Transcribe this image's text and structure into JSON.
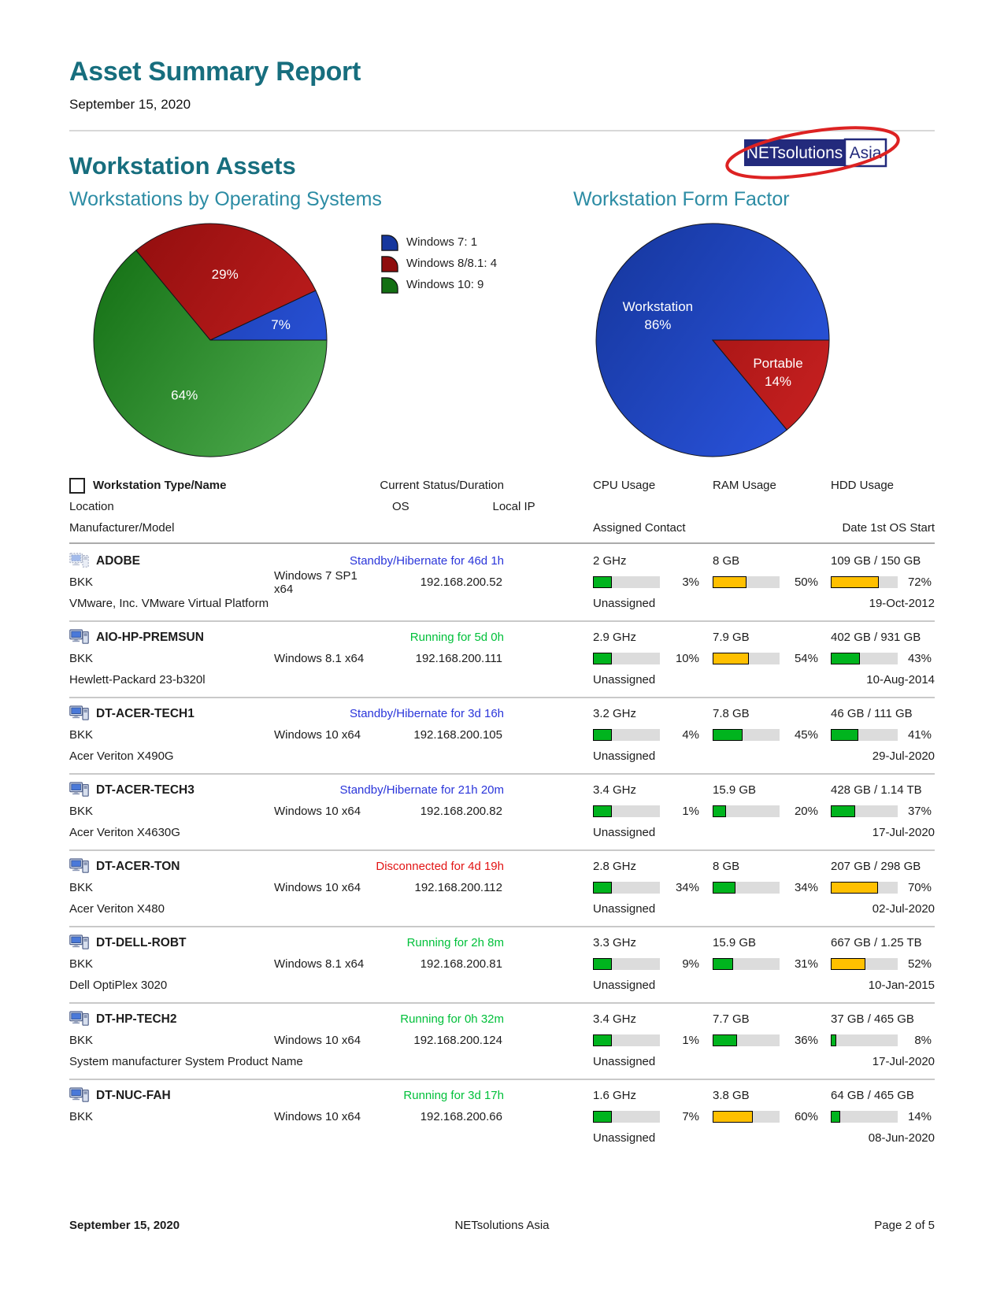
{
  "report": {
    "title": "Asset Summary Report",
    "date": "September 15, 2020",
    "section_title": "Workstation Assets"
  },
  "logo": {
    "primary": "NETsolutions",
    "secondary": "Asia",
    "navy": "#232A7C",
    "red": "#DD2222"
  },
  "chart_data": [
    {
      "type": "pie",
      "title": "Workstations by Operating Systems",
      "legend_position": "right",
      "slices": [
        {
          "label": "Windows 7",
          "count": 1,
          "pct": 7,
          "color": "blue",
          "legend_label": "Windows 7: 1",
          "display_lines": [
            "7%"
          ],
          "label_r": 0.62
        },
        {
          "label": "Windows 8/8.1",
          "count": 4,
          "pct": 29,
          "color": "red",
          "legend_label": "Windows 8/8.1: 4",
          "display_lines": [
            "29%"
          ],
          "label_r": 0.58
        },
        {
          "label": "Windows 10",
          "count": 9,
          "pct": 64,
          "color": "green",
          "legend_label": "Windows 10: 9",
          "display_lines": [
            "64%"
          ],
          "label_r": 0.52
        }
      ]
    },
    {
      "type": "pie",
      "title": "Workstation Form Factor",
      "legend_position": "none",
      "slices": [
        {
          "label": "Workstation",
          "pct": 86,
          "color": "blue",
          "display_lines": [
            "Workstation",
            "86%"
          ],
          "label_r": 0.52
        },
        {
          "label": "Portable",
          "pct": 14,
          "color": "red",
          "display_lines": [
            "Portable",
            "14%"
          ],
          "label_r": 0.62
        }
      ]
    }
  ],
  "ui": {
    "heading_color": "#176E7E",
    "chart_title_color": "#2C8CA4",
    "status_colors": {
      "standby": "#2A35DA",
      "running": "#00C03A",
      "disconnected": "#E21414"
    },
    "bar": {
      "low_color": "#00B41E",
      "high_color": "#FFC000",
      "threshold": 50,
      "track": "#DCDCDC",
      "cpu_fixed_fill": 28
    },
    "pie_colors": {
      "blue": [
        "#16379E",
        "#2B55E0"
      ],
      "red": [
        "#8F0D0D",
        "#C92121"
      ],
      "green": [
        "#136F13",
        "#4FAC4F"
      ]
    }
  },
  "table": {
    "headers": {
      "type_name": "Workstation Type/Name",
      "status": "Current Status/Duration",
      "cpu": "CPU Usage",
      "ram": "RAM Usage",
      "hdd": "HDD Usage",
      "location": "Location",
      "os": "OS",
      "ip": "Local IP",
      "manufacturer": "Manufacturer/Model",
      "contact": "Assigned Contact",
      "os_start": "Date 1st OS Start"
    },
    "rows": [
      {
        "icon": "virtual",
        "name": "ADOBE",
        "status": "Standby/Hibernate for 46d 1h",
        "status_type": "standby",
        "location": "BKK",
        "os": "Windows 7 SP1 x64",
        "ip": "192.168.200.52",
        "manufacturer": "VMware, Inc. VMware Virtual Platform",
        "cpu": {
          "spec": "2 GHz",
          "pct": 3
        },
        "ram": {
          "spec": "8 GB",
          "pct": 50
        },
        "hdd": {
          "spec": "109 GB / 150 GB",
          "pct": 72
        },
        "contact": "Unassigned",
        "os_start": "19-Oct-2012"
      },
      {
        "icon": "desktop",
        "name": "AIO-HP-PREMSUN",
        "status": "Running for 5d 0h",
        "status_type": "running",
        "location": "BKK",
        "os": "Windows 8.1 x64",
        "ip": "192.168.200.111",
        "manufacturer": "Hewlett-Packard 23-b320l",
        "cpu": {
          "spec": "2.9 GHz",
          "pct": 10
        },
        "ram": {
          "spec": "7.9 GB",
          "pct": 54
        },
        "hdd": {
          "spec": "402 GB / 931 GB",
          "pct": 43
        },
        "contact": "Unassigned",
        "os_start": "10-Aug-2014"
      },
      {
        "icon": "desktop",
        "name": "DT-ACER-TECH1",
        "status": "Standby/Hibernate for 3d 16h",
        "status_type": "standby",
        "location": "BKK",
        "os": "Windows 10 x64",
        "ip": "192.168.200.105",
        "manufacturer": "Acer Veriton X490G",
        "cpu": {
          "spec": "3.2 GHz",
          "pct": 4
        },
        "ram": {
          "spec": "7.8 GB",
          "pct": 45
        },
        "hdd": {
          "spec": "46 GB / 111 GB",
          "pct": 41
        },
        "contact": "Unassigned",
        "os_start": "29-Jul-2020"
      },
      {
        "icon": "desktop",
        "name": "DT-ACER-TECH3",
        "status": "Standby/Hibernate for 21h 20m",
        "status_type": "standby",
        "location": "BKK",
        "os": "Windows 10 x64",
        "ip": "192.168.200.82",
        "manufacturer": "Acer Veriton X4630G",
        "cpu": {
          "spec": "3.4 GHz",
          "pct": 1
        },
        "ram": {
          "spec": "15.9 GB",
          "pct": 20
        },
        "hdd": {
          "spec": "428 GB / 1.14 TB",
          "pct": 37
        },
        "contact": "Unassigned",
        "os_start": "17-Jul-2020"
      },
      {
        "icon": "desktop",
        "name": "DT-ACER-TON",
        "status": "Disconnected for 4d 19h",
        "status_type": "disconnected",
        "location": "BKK",
        "os": "Windows 10 x64",
        "ip": "192.168.200.112",
        "manufacturer": "Acer Veriton X480",
        "cpu": {
          "spec": "2.8 GHz",
          "pct": 34
        },
        "ram": {
          "spec": "8 GB",
          "pct": 34
        },
        "hdd": {
          "spec": "207 GB / 298 GB",
          "pct": 70
        },
        "contact": "Unassigned",
        "os_start": "02-Jul-2020"
      },
      {
        "icon": "desktop",
        "name": "DT-DELL-ROBT",
        "status": "Running for 2h 8m",
        "status_type": "running",
        "location": "BKK",
        "os": "Windows 8.1 x64",
        "ip": "192.168.200.81",
        "manufacturer": "Dell OptiPlex 3020",
        "cpu": {
          "spec": "3.3 GHz",
          "pct": 9
        },
        "ram": {
          "spec": "15.9 GB",
          "pct": 31
        },
        "hdd": {
          "spec": "667 GB / 1.25 TB",
          "pct": 52
        },
        "contact": "Unassigned",
        "os_start": "10-Jan-2015"
      },
      {
        "icon": "desktop",
        "name": "DT-HP-TECH2",
        "status": "Running for 0h 32m",
        "status_type": "running",
        "location": "BKK",
        "os": "Windows 10 x64",
        "ip": "192.168.200.124",
        "manufacturer": "System manufacturer System Product Name",
        "cpu": {
          "spec": "3.4 GHz",
          "pct": 1
        },
        "ram": {
          "spec": "7.7 GB",
          "pct": 36
        },
        "hdd": {
          "spec": "37 GB / 465 GB",
          "pct": 8
        },
        "contact": "Unassigned",
        "os_start": "17-Jul-2020"
      },
      {
        "icon": "desktop",
        "name": "DT-NUC-FAH",
        "status": "Running for 3d 17h",
        "status_type": "running",
        "location": "BKK",
        "os": "Windows 10 x64",
        "ip": "192.168.200.66",
        "manufacturer": "",
        "cpu": {
          "spec": "1.6 GHz",
          "pct": 7
        },
        "ram": {
          "spec": "3.8 GB",
          "pct": 60
        },
        "hdd": {
          "spec": "64 GB / 465 GB",
          "pct": 14
        },
        "contact": "Unassigned",
        "os_start": "08-Jun-2020"
      }
    ]
  },
  "footer": {
    "date": "September 15, 2020",
    "center": "NETsolutions Asia",
    "page": "Page 2 of 5"
  }
}
